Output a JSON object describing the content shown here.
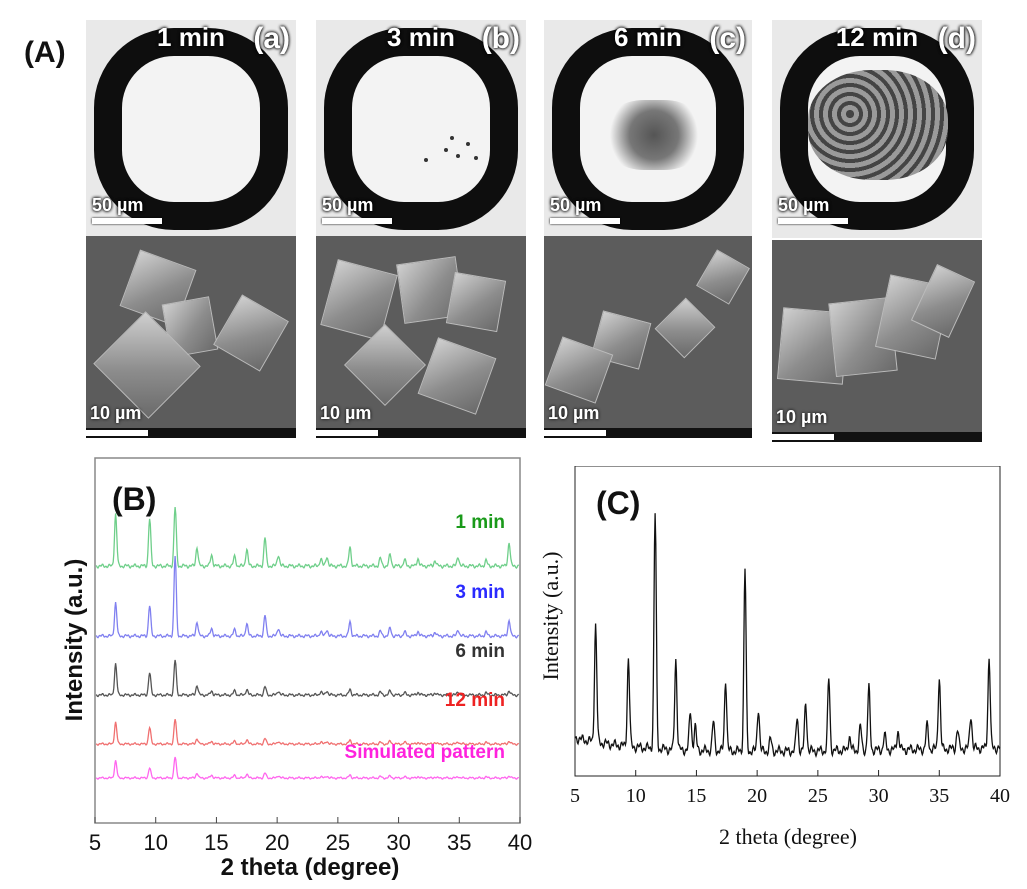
{
  "panelA": {
    "label": "(A)",
    "frames": [
      {
        "time": "1 min",
        "letter": "(a)",
        "micro_scale": "50 µm",
        "sem_scale": "10 µm"
      },
      {
        "time": "3 min",
        "letter": "(b)",
        "micro_scale": "50 µm",
        "sem_scale": "10 µm"
      },
      {
        "time": "6 min",
        "letter": "(c)",
        "micro_scale": "50 µm",
        "sem_scale": "10 µm"
      },
      {
        "time": "12 min",
        "letter": "(d)",
        "micro_scale": "50 µm",
        "sem_scale": "10 µm"
      }
    ]
  },
  "chart_data": [
    {
      "type": "line",
      "label": "(B)",
      "xlabel": "2 theta (degree)",
      "ylabel": "Intensity (a.u.)",
      "xlim": [
        5,
        40
      ],
      "xticks": [
        5,
        10,
        15,
        20,
        25,
        30,
        35,
        40
      ],
      "peaks_2theta": [
        6.7,
        9.5,
        11.6,
        13.4,
        14.6,
        16.5,
        17.5,
        19.0,
        20.1,
        23.6,
        24.1,
        26.0,
        28.5,
        29.3,
        30.5,
        31.6,
        33.0,
        34.9,
        37.2,
        39.1
      ],
      "series": [
        {
          "name": "1 min",
          "color": "#1a9a1a",
          "line_color": "#6fcf8a",
          "intensities": [
            0.55,
            0.5,
            0.62,
            0.2,
            0.12,
            0.1,
            0.18,
            0.3,
            0.12,
            0.08,
            0.1,
            0.2,
            0.08,
            0.12,
            0.06,
            0.08,
            0.06,
            0.1,
            0.06,
            0.25
          ]
        },
        {
          "name": "3 min",
          "color": "#2a2aff",
          "line_color": "#8080f0",
          "intensities": [
            0.42,
            0.38,
            1.0,
            0.18,
            0.1,
            0.08,
            0.16,
            0.26,
            0.1,
            0.06,
            0.08,
            0.18,
            0.06,
            0.1,
            0.05,
            0.06,
            0.05,
            0.08,
            0.05,
            0.2
          ]
        },
        {
          "name": "6 min",
          "color": "#333333",
          "line_color": "#555555",
          "intensities": [
            0.45,
            0.32,
            0.5,
            0.14,
            0.06,
            0.06,
            0.08,
            0.12,
            0.06,
            0.05,
            0.06,
            0.08,
            0.04,
            0.06,
            0.03,
            0.04,
            0.03,
            0.05,
            0.03,
            0.06
          ]
        },
        {
          "name": "12 min",
          "color": "#ee2222",
          "line_color": "#f07070",
          "intensities": [
            0.4,
            0.3,
            0.45,
            0.1,
            0.05,
            0.05,
            0.08,
            0.1,
            0.05,
            0.04,
            0.05,
            0.07,
            0.03,
            0.05,
            0.03,
            0.03,
            0.03,
            0.04,
            0.03,
            0.05
          ]
        },
        {
          "name": "Simulated pattern",
          "color": "#ff22dd",
          "line_color": "#ff66ee",
          "intensities": [
            0.35,
            0.2,
            0.42,
            0.1,
            0.06,
            0.05,
            0.08,
            0.1,
            0.05,
            0.03,
            0.04,
            0.06,
            0.03,
            0.04,
            0.02,
            0.03,
            0.02,
            0.03,
            0.02,
            0.04
          ]
        }
      ]
    },
    {
      "type": "line",
      "label": "(C)",
      "xlabel": "2 theta (degree)",
      "ylabel": "Intensity (a.u.)",
      "xlim": [
        5,
        40
      ],
      "xticks": [
        5,
        10,
        15,
        20,
        25,
        30,
        35,
        40
      ],
      "peaks_2theta": [
        6.7,
        9.4,
        11.6,
        13.3,
        14.5,
        14.9,
        16.4,
        17.4,
        19.0,
        20.1,
        21.1,
        23.3,
        24.0,
        25.9,
        27.6,
        28.5,
        29.2,
        30.5,
        31.6,
        34.0,
        35.0,
        36.5,
        37.6,
        39.1
      ],
      "intensities": [
        0.49,
        0.37,
        0.98,
        0.38,
        0.16,
        0.1,
        0.12,
        0.3,
        0.76,
        0.18,
        0.05,
        0.14,
        0.2,
        0.3,
        0.06,
        0.1,
        0.26,
        0.06,
        0.08,
        0.1,
        0.3,
        0.08,
        0.14,
        0.38
      ]
    }
  ]
}
